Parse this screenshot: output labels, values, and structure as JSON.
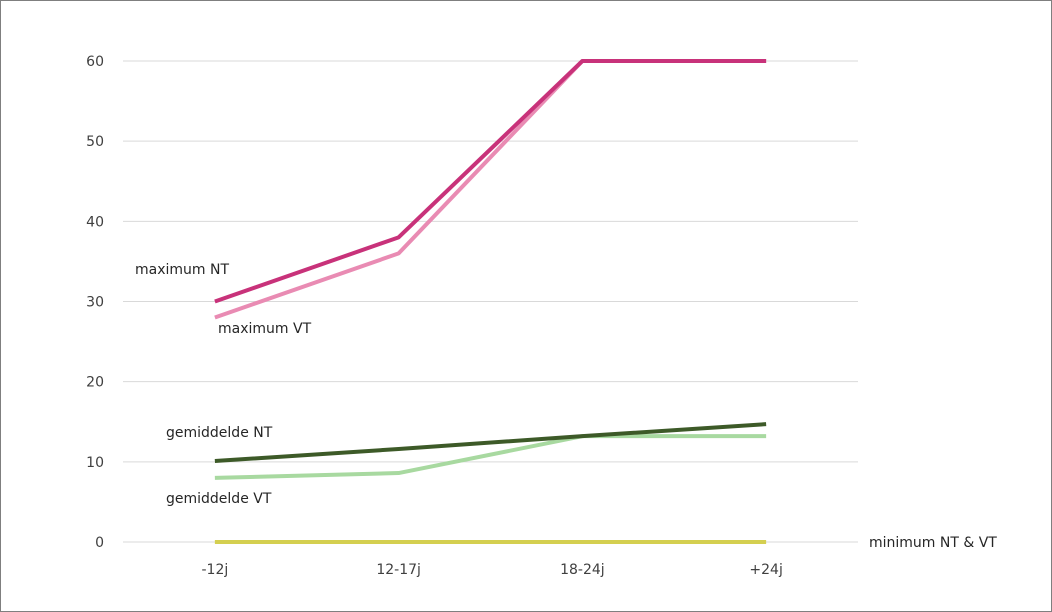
{
  "chart_data": {
    "type": "line",
    "categories": [
      "-12j",
      "12-17j",
      "18-24j",
      "+24j"
    ],
    "ylim": [
      0,
      60
    ],
    "yticks": [
      "0",
      "10",
      "20",
      "30",
      "40",
      "50",
      "60"
    ],
    "grid": true,
    "series": [
      {
        "name": "maximum NT",
        "values": [
          30,
          38,
          60,
          60
        ],
        "color": "#c8327a"
      },
      {
        "name": "maximum VT",
        "values": [
          28,
          36,
          60,
          60
        ],
        "color": "#e98bb3"
      },
      {
        "name": "gemiddelde NT",
        "values": [
          10.1,
          11.6,
          13.2,
          14.7
        ],
        "color": "#3d5a28"
      },
      {
        "name": "gemiddelde VT",
        "values": [
          8,
          8.6,
          13.2,
          13.2
        ],
        "color": "#a8d9a0"
      },
      {
        "name": "minimum NT & VT",
        "values": [
          0,
          0,
          0,
          0
        ],
        "color": "#d4cf50"
      }
    ]
  }
}
